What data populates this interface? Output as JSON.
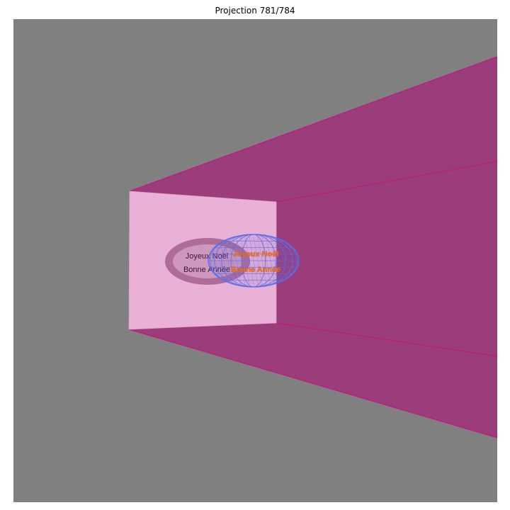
{
  "title": "Projection 781/784",
  "scene": {
    "background_color": "#808080",
    "box_outer_color": "#9c3d7b",
    "box_edge_color": "#c2187f",
    "back_wall_color": "#eab1d6",
    "shadow_ellipse_outer_color": "#b06c98",
    "shadow_ellipse_inner_color": "#cf97bd",
    "wireframe_color": "#5b6ee8",
    "wireframe_text_color": "#f47a2b",
    "back_wall_text": [
      "Joyeux Noël",
      "Bonne Année"
    ],
    "wireframe_text": [
      "Joyeux Noël",
      "Bonne Année"
    ]
  }
}
